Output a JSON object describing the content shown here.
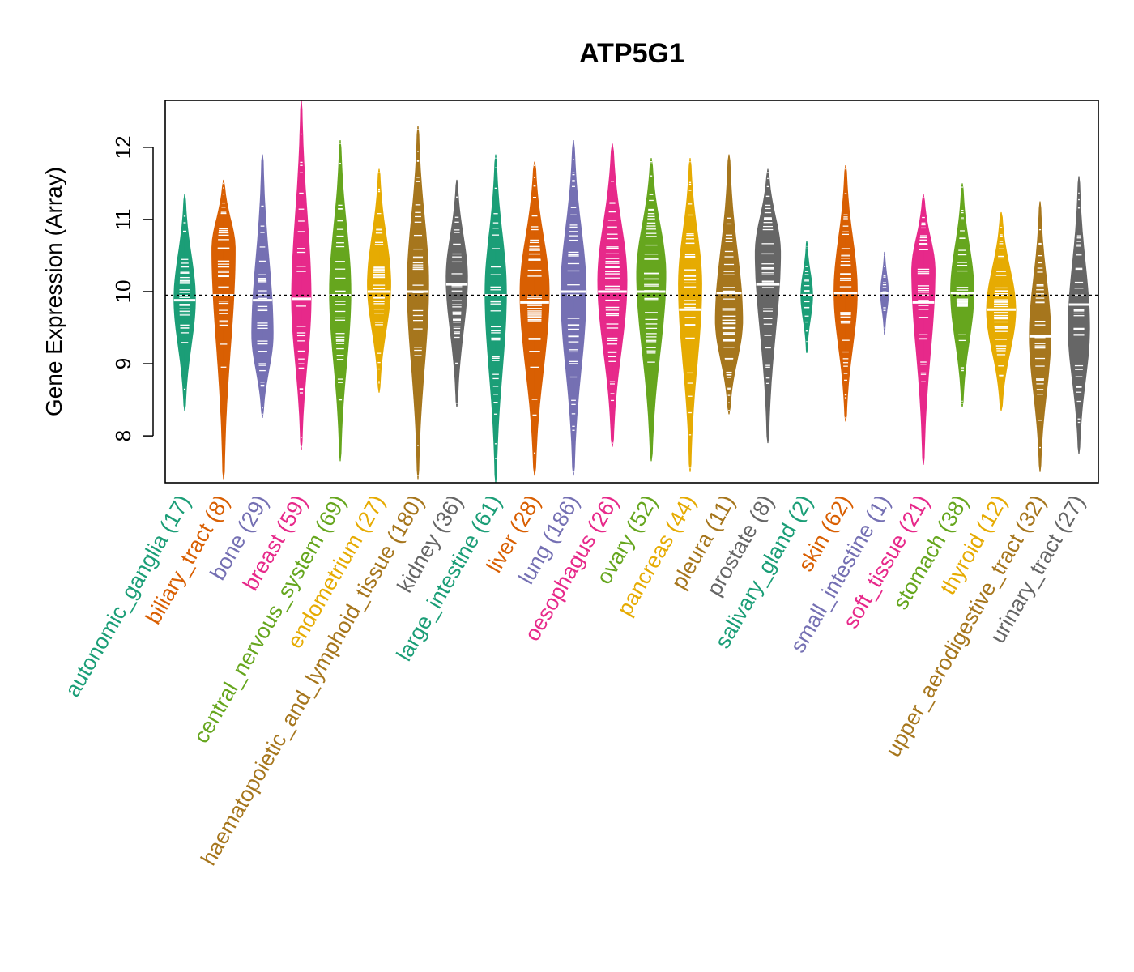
{
  "chart_data": {
    "type": "violin",
    "title": "ATP5G1",
    "ylabel": "Gene Expression (Array)",
    "xlabel": "",
    "ylim": [
      7.35,
      12.65
    ],
    "yticks": [
      8,
      9,
      10,
      11,
      12
    ],
    "reference_line": 9.95,
    "grid": false,
    "categories": [
      {
        "label": "autonomic_ganglia (17)",
        "color": "#1B9E77",
        "min": 8.35,
        "max": 11.35,
        "median": 9.88,
        "peak": 9.9,
        "width": 0.55
      },
      {
        "label": "biliary_tract (8)",
        "color": "#D95F02",
        "min": 7.4,
        "max": 11.55,
        "median": 9.95,
        "peak": 10.6,
        "width": 0.6
      },
      {
        "label": "bone (29)",
        "color": "#7570B3",
        "min": 8.25,
        "max": 11.9,
        "median": 9.88,
        "peak": 9.4,
        "width": 0.55
      },
      {
        "label": "breast (59)",
        "color": "#E7298A",
        "min": 7.8,
        "max": 12.65,
        "median": 9.9,
        "peak": 9.9,
        "width": 0.5
      },
      {
        "label": "central_nervous_system (69)",
        "color": "#66A61E",
        "min": 7.65,
        "max": 12.1,
        "median": 9.95,
        "peak": 10.0,
        "width": 0.55
      },
      {
        "label": "endometrium (27)",
        "color": "#E6AB02",
        "min": 8.6,
        "max": 11.7,
        "median": 10.0,
        "peak": 10.1,
        "width": 0.6
      },
      {
        "label": "haematopoietic_and_lymphoid_tissue (180)",
        "color": "#A6761D",
        "min": 7.4,
        "max": 12.3,
        "median": 10.0,
        "peak": 10.1,
        "width": 0.55
      },
      {
        "label": "kidney (36)",
        "color": "#666666",
        "min": 8.4,
        "max": 11.55,
        "median": 10.1,
        "peak": 10.2,
        "width": 0.55
      },
      {
        "label": "large_intestine (61)",
        "color": "#1B9E77",
        "min": 7.35,
        "max": 11.9,
        "median": 9.95,
        "peak": 10.0,
        "width": 0.55
      },
      {
        "label": "liver (28)",
        "color": "#D95F02",
        "min": 7.45,
        "max": 11.8,
        "median": 9.85,
        "peak": 10.0,
        "width": 0.75
      },
      {
        "label": "lung (186)",
        "color": "#7570B3",
        "min": 7.45,
        "max": 12.1,
        "median": 10.0,
        "peak": 10.0,
        "width": 0.65
      },
      {
        "label": "oesophagus (26)",
        "color": "#E7298A",
        "min": 7.85,
        "max": 12.05,
        "median": 10.0,
        "peak": 10.15,
        "width": 0.75
      },
      {
        "label": "ovary (52)",
        "color": "#66A61E",
        "min": 7.65,
        "max": 11.85,
        "median": 10.0,
        "peak": 10.25,
        "width": 0.75
      },
      {
        "label": "pancreas (44)",
        "color": "#E6AB02",
        "min": 7.5,
        "max": 11.85,
        "median": 9.75,
        "peak": 10.1,
        "width": 0.6
      },
      {
        "label": "pleura (11)",
        "color": "#A6761D",
        "min": 8.3,
        "max": 11.9,
        "median": 9.98,
        "peak": 9.6,
        "width": 0.7
      },
      {
        "label": "prostate (8)",
        "color": "#666666",
        "min": 7.9,
        "max": 11.7,
        "median": 10.1,
        "peak": 10.55,
        "width": 0.65
      },
      {
        "label": "salivary_gland (2)",
        "color": "#1B9E77",
        "min": 9.15,
        "max": 10.7,
        "median": 9.95,
        "peak": 9.95,
        "width": 0.3
      },
      {
        "label": "skin (62)",
        "color": "#D95F02",
        "min": 8.2,
        "max": 11.75,
        "median": 9.98,
        "peak": 10.0,
        "width": 0.6
      },
      {
        "label": "small_intestine (1)",
        "color": "#7570B3",
        "min": 9.4,
        "max": 10.55,
        "median": 9.98,
        "peak": 9.98,
        "width": 0.2
      },
      {
        "label": "soft_tissue (21)",
        "color": "#E7298A",
        "min": 7.6,
        "max": 11.35,
        "median": 9.85,
        "peak": 10.3,
        "width": 0.6
      },
      {
        "label": "stomach (38)",
        "color": "#66A61E",
        "min": 8.4,
        "max": 11.5,
        "median": 9.98,
        "peak": 10.0,
        "width": 0.6
      },
      {
        "label": "thyroid (12)",
        "color": "#E6AB02",
        "min": 8.35,
        "max": 11.1,
        "median": 9.75,
        "peak": 9.75,
        "width": 0.75
      },
      {
        "label": "upper_aerodigestive_tract (32)",
        "color": "#A6761D",
        "min": 7.5,
        "max": 11.25,
        "median": 9.38,
        "peak": 9.4,
        "width": 0.55
      },
      {
        "label": "urinary_tract (27)",
        "color": "#666666",
        "min": 7.75,
        "max": 11.6,
        "median": 9.82,
        "peak": 9.5,
        "width": 0.55
      }
    ]
  }
}
